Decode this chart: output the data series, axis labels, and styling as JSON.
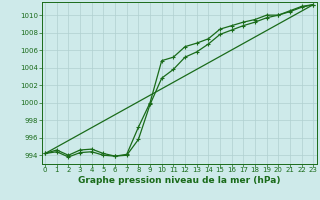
{
  "x": [
    0,
    1,
    2,
    3,
    4,
    5,
    6,
    7,
    8,
    9,
    10,
    11,
    12,
    13,
    14,
    15,
    16,
    17,
    18,
    19,
    20,
    21,
    22,
    23
  ],
  "line1": [
    994.2,
    994.4,
    993.8,
    994.3,
    994.4,
    994.0,
    993.9,
    994.1,
    997.2,
    1000.0,
    1004.8,
    1005.2,
    1006.4,
    1006.8,
    1007.3,
    1008.4,
    1008.8,
    1009.2,
    1009.5,
    1010.0,
    1010.0,
    1010.5,
    1011.0,
    1011.2
  ],
  "line2": [
    994.2,
    994.6,
    994.0,
    994.6,
    994.7,
    994.2,
    993.9,
    994.0,
    995.8,
    999.8,
    1002.8,
    1003.8,
    1005.2,
    1005.8,
    1006.7,
    1007.8,
    1008.3,
    1008.8,
    1009.2,
    1009.7,
    1010.0,
    1010.4,
    1010.9,
    1011.2
  ],
  "line3_x": [
    0,
    23
  ],
  "line3_y": [
    994.2,
    1011.2
  ],
  "line_color": "#1a6b1a",
  "marker_color": "#1a6b1a",
  "bg_color": "#ceeaea",
  "grid_color": "#b0d0d0",
  "title": "Graphe pression niveau de la mer (hPa)",
  "ylim": [
    993.0,
    1011.5
  ],
  "xlim": [
    -0.3,
    23.3
  ],
  "yticks": [
    994,
    996,
    998,
    1000,
    1002,
    1004,
    1006,
    1008,
    1010
  ],
  "xticks": [
    0,
    1,
    2,
    3,
    4,
    5,
    6,
    7,
    8,
    9,
    10,
    11,
    12,
    13,
    14,
    15,
    16,
    17,
    18,
    19,
    20,
    21,
    22,
    23
  ],
  "tick_fontsize": 5.0,
  "title_fontsize": 6.5
}
